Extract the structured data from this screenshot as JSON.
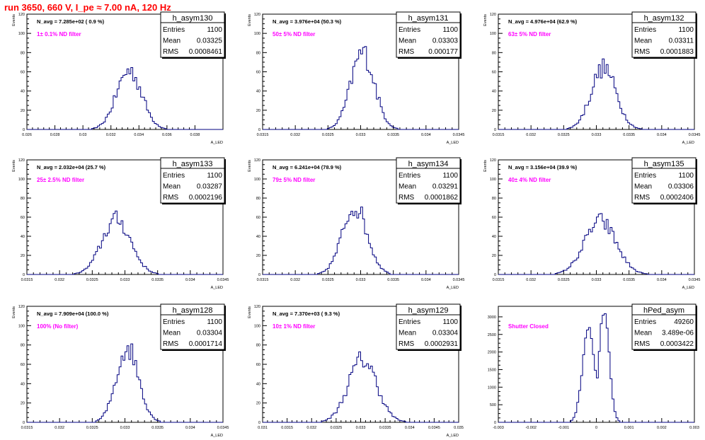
{
  "header": {
    "title": "run 3650,   660 V, I_pe ≈ 7.00 nA, 120 Hz"
  },
  "colors": {
    "histogram": "#000080",
    "annotation": "#ff00ff",
    "title": "#ff0000"
  },
  "chart_data": [
    {
      "type": "histogram",
      "name": "h_asym130",
      "ylabel": "Events",
      "xlabel": "A_LED",
      "stats": {
        "entries": "1100",
        "mean": "0.03325",
        "rms": "0.0008461"
      },
      "navg": "N_avg = 7.285e+02 ( 0.9 %)",
      "filter": "1± 0.1% ND filter",
      "xlim": [
        0.026,
        0.04
      ],
      "ylim": [
        0,
        120
      ],
      "xticks": [
        0.026,
        0.028,
        0.03,
        0.032,
        0.034,
        0.036,
        0.038
      ],
      "xtick_labels": [
        "0.026",
        "0.028",
        "0.03",
        "0.032",
        "0.034",
        "0.036",
        "0.038"
      ],
      "yticks": [
        0,
        20,
        40,
        60,
        80,
        100,
        120
      ],
      "ytick_labels": [
        "0",
        "20",
        "40",
        "60",
        "80",
        "100",
        "120"
      ],
      "peak_center": 0.0333,
      "peak_width": 0.0009,
      "peak_height": 66
    },
    {
      "type": "histogram",
      "name": "h_asym131",
      "ylabel": "Events",
      "xlabel": "A_LED",
      "stats": {
        "entries": "1100",
        "mean": "0.03303",
        "rms": "0.000177"
      },
      "navg": "N_avg = 3.976e+04 (50.3 %)",
      "filter": "50± 5% ND filter",
      "xlim": [
        0.0315,
        0.0345
      ],
      "ylim": [
        0,
        120
      ],
      "xticks": [
        0.0315,
        0.032,
        0.0325,
        0.033,
        0.0335,
        0.034,
        0.0345
      ],
      "xtick_labels": [
        "0.0315",
        "0.032",
        "0.0325",
        "0.033",
        "0.0335",
        "0.034",
        "0.0345"
      ],
      "yticks": [
        0,
        20,
        40,
        60,
        80,
        100,
        120
      ],
      "ytick_labels": [
        "0",
        "20",
        "40",
        "60",
        "80",
        "100",
        "120"
      ],
      "peak_center": 0.03303,
      "peak_width": 0.00018,
      "peak_height": 86
    },
    {
      "type": "histogram",
      "name": "h_asym132",
      "ylabel": "Events",
      "xlabel": "A_LED",
      "stats": {
        "entries": "1100",
        "mean": "0.03311",
        "rms": "0.0001883"
      },
      "navg": "N_avg = 4.976e+04 (62.9 %)",
      "filter": "63± 5% ND filter",
      "xlim": [
        0.0315,
        0.0345
      ],
      "ylim": [
        0,
        120
      ],
      "xticks": [
        0.0315,
        0.032,
        0.0325,
        0.033,
        0.0335,
        0.034,
        0.0345
      ],
      "xtick_labels": [
        "0.0315",
        "0.032",
        "0.0325",
        "0.033",
        "0.0335",
        "0.034",
        "0.0345"
      ],
      "yticks": [
        0,
        20,
        40,
        60,
        80,
        100,
        120
      ],
      "ytick_labels": [
        "0",
        "20",
        "40",
        "60",
        "80",
        "100",
        "120"
      ],
      "peak_center": 0.03311,
      "peak_width": 0.00019,
      "peak_height": 69
    },
    {
      "type": "histogram",
      "name": "h_asym133",
      "ylabel": "Events",
      "xlabel": "A_LED",
      "stats": {
        "entries": "1100",
        "mean": "0.03287",
        "rms": "0.0002196"
      },
      "navg": "N_avg = 2.032e+04 (25.7 %)",
      "filter": "25± 2.5% ND filter",
      "xlim": [
        0.0315,
        0.0345
      ],
      "ylim": [
        0,
        120
      ],
      "xticks": [
        0.0315,
        0.032,
        0.0325,
        0.033,
        0.0335,
        0.034,
        0.0345
      ],
      "xtick_labels": [
        "0.0315",
        "0.032",
        "0.0325",
        "0.033",
        "0.0335",
        "0.034",
        "0.0345"
      ],
      "yticks": [
        0,
        20,
        40,
        60,
        80,
        100,
        120
      ],
      "ytick_labels": [
        "0",
        "20",
        "40",
        "60",
        "80",
        "100",
        "120"
      ],
      "peak_center": 0.03287,
      "peak_width": 0.00022,
      "peak_height": 62
    },
    {
      "type": "histogram",
      "name": "h_asym134",
      "ylabel": "Events",
      "xlabel": "A_LED",
      "stats": {
        "entries": "1100",
        "mean": "0.03291",
        "rms": "0.0001862"
      },
      "navg": "N_avg = 6.241e+04 (78.9 %)",
      "filter": "79± 5% ND filter",
      "xlim": [
        0.0315,
        0.0345
      ],
      "ylim": [
        0,
        120
      ],
      "xticks": [
        0.0315,
        0.032,
        0.0325,
        0.033,
        0.0335,
        0.034,
        0.0345
      ],
      "xtick_labels": [
        "0.0315",
        "0.032",
        "0.0325",
        "0.033",
        "0.0335",
        "0.034",
        "0.0345"
      ],
      "yticks": [
        0,
        20,
        40,
        60,
        80,
        100,
        120
      ],
      "ytick_labels": [
        "0",
        "20",
        "40",
        "60",
        "80",
        "100",
        "120"
      ],
      "peak_center": 0.03291,
      "peak_width": 0.00019,
      "peak_height": 77
    },
    {
      "type": "histogram",
      "name": "h_asym135",
      "ylabel": "Events",
      "xlabel": "A_LED",
      "stats": {
        "entries": "1100",
        "mean": "0.03306",
        "rms": "0.0002406"
      },
      "navg": "N_avg = 3.156e+04 (39.9 %)",
      "filter": "40± 4% ND filter",
      "xlim": [
        0.0315,
        0.0345
      ],
      "ylim": [
        0,
        120
      ],
      "xticks": [
        0.0315,
        0.032,
        0.0325,
        0.033,
        0.0335,
        0.034,
        0.0345
      ],
      "xtick_labels": [
        "0.0315",
        "0.032",
        "0.0325",
        "0.033",
        "0.0335",
        "0.034",
        "0.0345"
      ],
      "yticks": [
        0,
        20,
        40,
        60,
        80,
        100,
        120
      ],
      "ytick_labels": [
        "0",
        "20",
        "40",
        "60",
        "80",
        "100",
        "120"
      ],
      "peak_center": 0.03306,
      "peak_width": 0.00024,
      "peak_height": 60
    },
    {
      "type": "histogram",
      "name": "h_asym128",
      "ylabel": "Events",
      "xlabel": "A_LED",
      "stats": {
        "entries": "1100",
        "mean": "0.03304",
        "rms": "0.0001714"
      },
      "navg": "N_avg = 7.909e+04 (100.0 %)",
      "filter": "100% (No filter)",
      "xlim": [
        0.0315,
        0.0345
      ],
      "ylim": [
        0,
        120
      ],
      "xticks": [
        0.0315,
        0.032,
        0.0325,
        0.033,
        0.0335,
        0.034,
        0.0345
      ],
      "xtick_labels": [
        "0.0315",
        "0.032",
        "0.0325",
        "0.033",
        "0.0335",
        "0.034",
        "0.0345"
      ],
      "yticks": [
        0,
        20,
        40,
        60,
        80,
        100,
        120
      ],
      "ytick_labels": [
        "0",
        "20",
        "40",
        "60",
        "80",
        "100",
        "120"
      ],
      "peak_center": 0.03304,
      "peak_width": 0.00017,
      "peak_height": 83
    },
    {
      "type": "histogram",
      "name": "h_asym129",
      "ylabel": "Events",
      "xlabel": "A_LED",
      "stats": {
        "entries": "1100",
        "mean": "0.03304",
        "rms": "0.0002931"
      },
      "navg": "N_avg = 7.370e+03 ( 9.3 %)",
      "filter": "10± 1% ND filter",
      "xlim": [
        0.031,
        0.035
      ],
      "ylim": [
        0,
        120
      ],
      "xticks": [
        0.031,
        0.0315,
        0.032,
        0.0325,
        0.033,
        0.0335,
        0.034,
        0.0345,
        0.035
      ],
      "xtick_labels": [
        "0.031",
        "0.0315",
        "0.032",
        "0.0325",
        "0.033",
        "0.0335",
        "0.034",
        "0.0345",
        "0.035"
      ],
      "yticks": [
        0,
        20,
        40,
        60,
        80,
        100,
        120
      ],
      "ytick_labels": [
        "0",
        "20",
        "40",
        "60",
        "80",
        "100",
        "120"
      ],
      "peak_center": 0.03304,
      "peak_width": 0.00029,
      "peak_height": 70
    },
    {
      "type": "histogram",
      "name": "hPed_asym",
      "ylabel": "",
      "xlabel": "",
      "stats": {
        "entries": "49260",
        "mean": "3.489e-06",
        "rms": "0.0003422"
      },
      "navg": "",
      "filter": "Shutter Closed",
      "xlim": [
        -0.003,
        0.003
      ],
      "ylim": [
        0,
        3300
      ],
      "xticks": [
        -0.003,
        -0.002,
        -0.001,
        0,
        0.001,
        0.002,
        0.003
      ],
      "xtick_labels": [
        "-0.003",
        "-0.002",
        "-0.001",
        "0",
        "0.001",
        "0.002",
        "0.003"
      ],
      "yticks": [
        0,
        500,
        1000,
        1500,
        2000,
        2500,
        3000
      ],
      "ytick_labels": [
        "0",
        "500",
        "1000",
        "1500",
        "2000",
        "2500",
        "3000"
      ],
      "peak_center": 3.5e-06,
      "peak_width": 0.00034,
      "peak_height": 3200,
      "bimodal": true
    }
  ]
}
